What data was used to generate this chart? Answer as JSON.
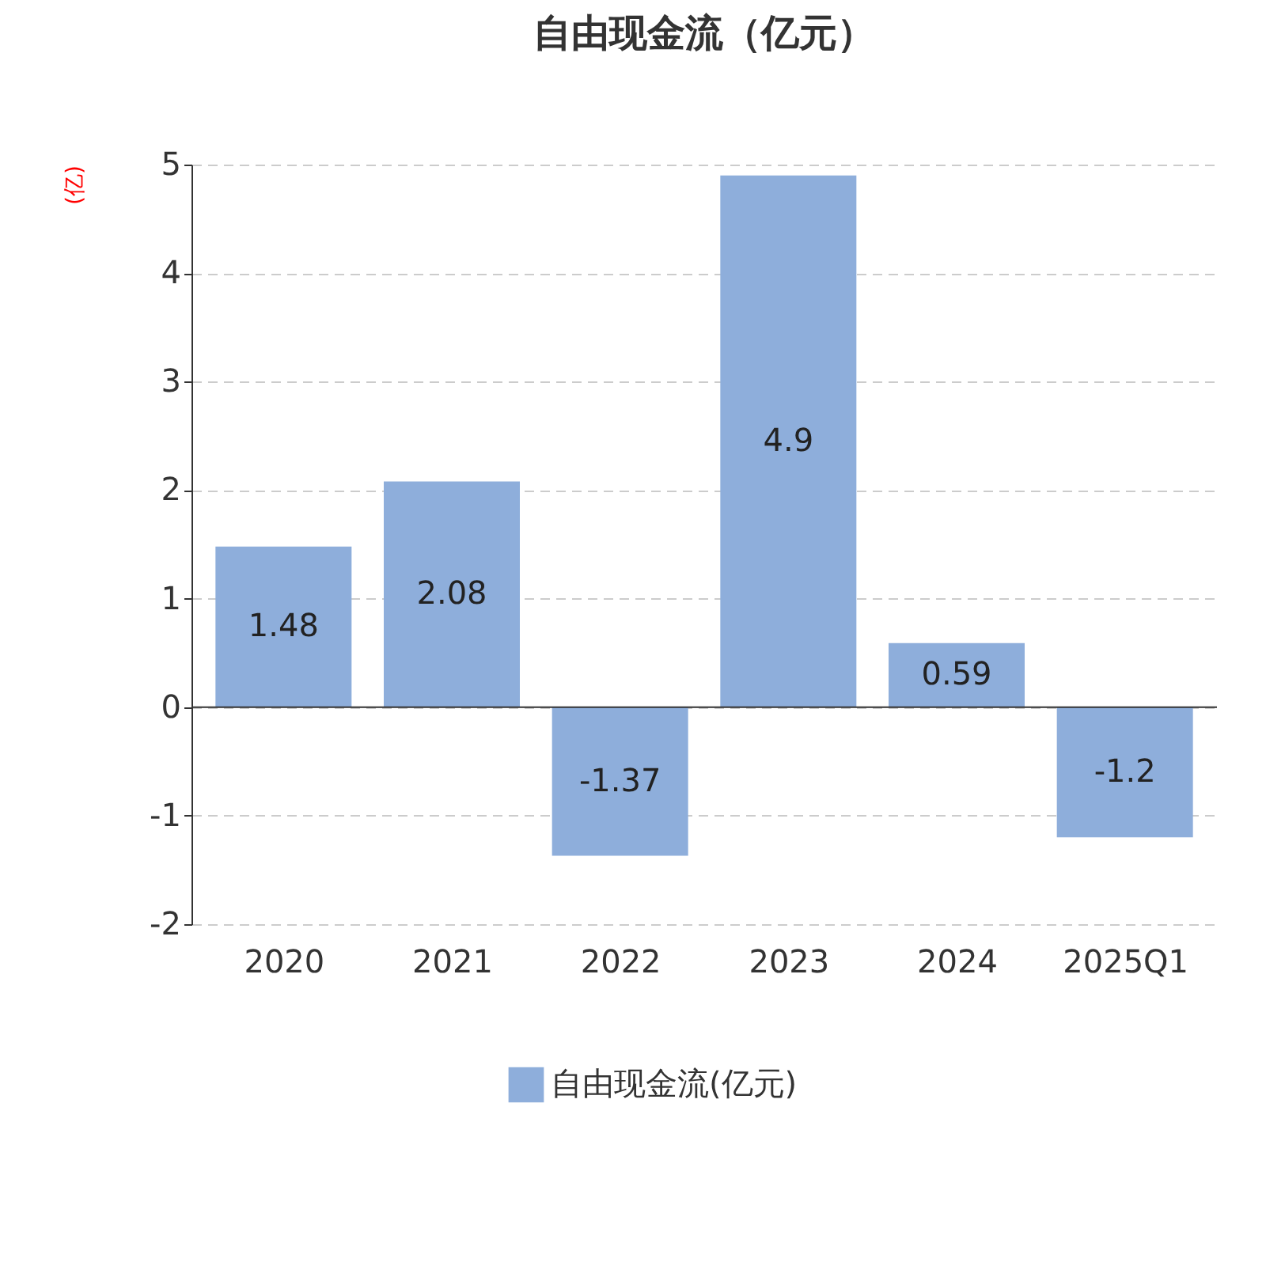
{
  "chart_data": {
    "type": "bar",
    "title": "自由现金流（亿元）",
    "ylabel": "(亿)",
    "categories": [
      "2020",
      "2021",
      "2022",
      "2023",
      "2024",
      "2025Q1"
    ],
    "series": [
      {
        "name": "自由现金流(亿元)",
        "color": "#8eaedb",
        "values": [
          1.48,
          2.08,
          -1.37,
          4.9,
          0.59,
          -1.2
        ]
      }
    ],
    "ylim": [
      -2,
      5
    ],
    "yticks": [
      -2,
      -1,
      0,
      1,
      2,
      3,
      4,
      5
    ],
    "grid": "y",
    "legend": "bottom",
    "data_labels": true
  }
}
